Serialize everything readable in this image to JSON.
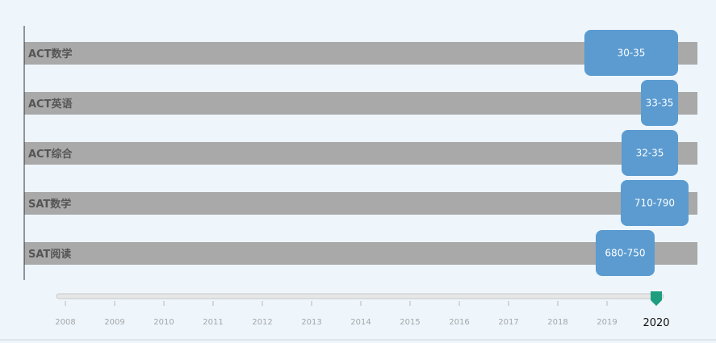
{
  "chart_data": {
    "type": "bar",
    "categories": [
      "ACT数学",
      "ACT英语",
      "ACT综合",
      "SAT数学",
      "SAT阅读"
    ],
    "range_labels": [
      "30-35",
      "33-35",
      "32-35",
      "710-790",
      "680-750"
    ],
    "bar_color": "#a9a9a9",
    "label_box_color": "#5b9bd0",
    "grid": false,
    "legend": "none"
  },
  "timeline": {
    "years": [
      "2008",
      "2009",
      "2010",
      "2011",
      "2012",
      "2013",
      "2014",
      "2015",
      "2016",
      "2017",
      "2018",
      "2019"
    ],
    "current_year": "2020",
    "handle_color": "#1e9e7f"
  }
}
